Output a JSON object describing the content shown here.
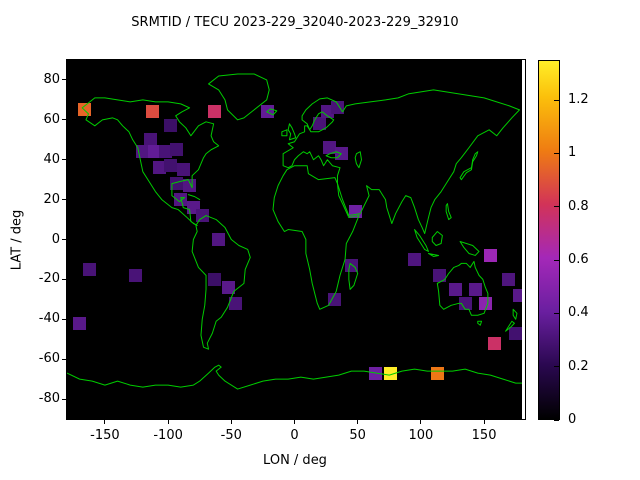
{
  "title": "SRMTID / TECU 2023-229_32040-2023-229_32910",
  "axes": {
    "xlabel": "LON / deg",
    "ylabel": "LAT / deg",
    "x_ticks": [
      "-150",
      "-100",
      "-50",
      "0",
      "50",
      "100",
      "150"
    ],
    "x_tick_values": [
      -150,
      -100,
      -50,
      0,
      50,
      100,
      150
    ],
    "y_ticks": [
      "80",
      "60",
      "40",
      "20",
      "0",
      "-20",
      "-40",
      "-60",
      "-80"
    ],
    "y_tick_values": [
      80,
      60,
      40,
      20,
      0,
      -20,
      -40,
      -60,
      -80
    ],
    "xlim": [
      -180,
      180
    ],
    "ylim": [
      -90,
      90
    ]
  },
  "colorbar": {
    "tick_labels": [
      "0",
      "0.2",
      "0.4",
      "0.6",
      "0.8",
      "1",
      "1.2"
    ],
    "tick_values": [
      0,
      0.2,
      0.4,
      0.6,
      0.8,
      1,
      1.2
    ],
    "range": [
      0,
      1.35
    ],
    "gradient_stops": [
      {
        "t": 0.0,
        "color": "#000000"
      },
      {
        "t": 0.15,
        "color": "#2a0850"
      },
      {
        "t": 0.3,
        "color": "#6a1fa0"
      },
      {
        "t": 0.45,
        "color": "#a428b8"
      },
      {
        "t": 0.6,
        "color": "#d23358"
      },
      {
        "t": 0.75,
        "color": "#ef7c12"
      },
      {
        "t": 0.9,
        "color": "#fbc00b"
      },
      {
        "t": 1.0,
        "color": "#ffee28"
      }
    ]
  },
  "colors": {
    "background": "#ffffff",
    "plot_background": "#000000",
    "coastline": "#00cc00",
    "text": "#000000"
  },
  "chart_data": {
    "type": "heatmap",
    "title": "SRMTID / TECU 2023-229_32040-2023-229_32910",
    "xlabel": "LON / deg",
    "ylabel": "LAT / deg",
    "xlim": [
      -180,
      180
    ],
    "ylim": [
      -90,
      90
    ],
    "value_unit": "TECU",
    "value_range": [
      0,
      1.35
    ],
    "cell_size_deg": 10,
    "cells": [
      {
        "lon": -166,
        "lat": 65,
        "value": 0.95
      },
      {
        "lon": -112,
        "lat": 64,
        "value": 0.88
      },
      {
        "lon": -63,
        "lat": 64,
        "value": 0.78
      },
      {
        "lon": -21,
        "lat": 64,
        "value": 0.38
      },
      {
        "lon": 20,
        "lat": 58,
        "value": 0.3
      },
      {
        "lon": 26,
        "lat": 64,
        "value": 0.33
      },
      {
        "lon": 34,
        "lat": 66,
        "value": 0.3
      },
      {
        "lon": -98,
        "lat": 57,
        "value": 0.26
      },
      {
        "lon": -114,
        "lat": 50,
        "value": 0.3
      },
      {
        "lon": -120,
        "lat": 44,
        "value": 0.33
      },
      {
        "lon": -111,
        "lat": 44,
        "value": 0.38
      },
      {
        "lon": -102,
        "lat": 44,
        "value": 0.3
      },
      {
        "lon": -93,
        "lat": 45,
        "value": 0.28
      },
      {
        "lon": -107,
        "lat": 36,
        "value": 0.33
      },
      {
        "lon": -98,
        "lat": 37,
        "value": 0.28
      },
      {
        "lon": -88,
        "lat": 35,
        "value": 0.3
      },
      {
        "lon": -93,
        "lat": 28,
        "value": 0.28
      },
      {
        "lon": -83,
        "lat": 27,
        "value": 0.33
      },
      {
        "lon": -90,
        "lat": 20,
        "value": 0.33
      },
      {
        "lon": -80,
        "lat": 16,
        "value": 0.35
      },
      {
        "lon": -73,
        "lat": 12,
        "value": 0.3
      },
      {
        "lon": 28,
        "lat": 46,
        "value": 0.33
      },
      {
        "lon": 37,
        "lat": 43,
        "value": 0.35
      },
      {
        "lon": 48,
        "lat": 14,
        "value": 0.42
      },
      {
        "lon": -60,
        "lat": 0,
        "value": 0.33
      },
      {
        "lon": -63,
        "lat": -20,
        "value": 0.26
      },
      {
        "lon": -52,
        "lat": -24,
        "value": 0.35
      },
      {
        "lon": -47,
        "lat": -32,
        "value": 0.3
      },
      {
        "lon": -162,
        "lat": -15,
        "value": 0.3
      },
      {
        "lon": -126,
        "lat": -18,
        "value": 0.3
      },
      {
        "lon": -170,
        "lat": -42,
        "value": 0.35
      },
      {
        "lon": 32,
        "lat": -30,
        "value": 0.3
      },
      {
        "lon": 45,
        "lat": -13,
        "value": 0.3
      },
      {
        "lon": 95,
        "lat": -10,
        "value": 0.32
      },
      {
        "lon": 115,
        "lat": -18,
        "value": 0.3
      },
      {
        "lon": 127,
        "lat": -25,
        "value": 0.35
      },
      {
        "lon": 143,
        "lat": -25,
        "value": 0.35
      },
      {
        "lon": 135,
        "lat": -32,
        "value": 0.3
      },
      {
        "lon": 151,
        "lat": -32,
        "value": 0.52
      },
      {
        "lon": 155,
        "lat": -8,
        "value": 0.58
      },
      {
        "lon": 169,
        "lat": -20,
        "value": 0.32
      },
      {
        "lon": 178,
        "lat": -28,
        "value": 0.35
      },
      {
        "lon": 175,
        "lat": -47,
        "value": 0.28
      },
      {
        "lon": 158,
        "lat": -52,
        "value": 0.78
      },
      {
        "lon": 64,
        "lat": -67,
        "value": 0.42
      },
      {
        "lon": 76,
        "lat": -67,
        "value": 1.35
      },
      {
        "lon": 113,
        "lat": -67,
        "value": 1.0
      }
    ]
  }
}
